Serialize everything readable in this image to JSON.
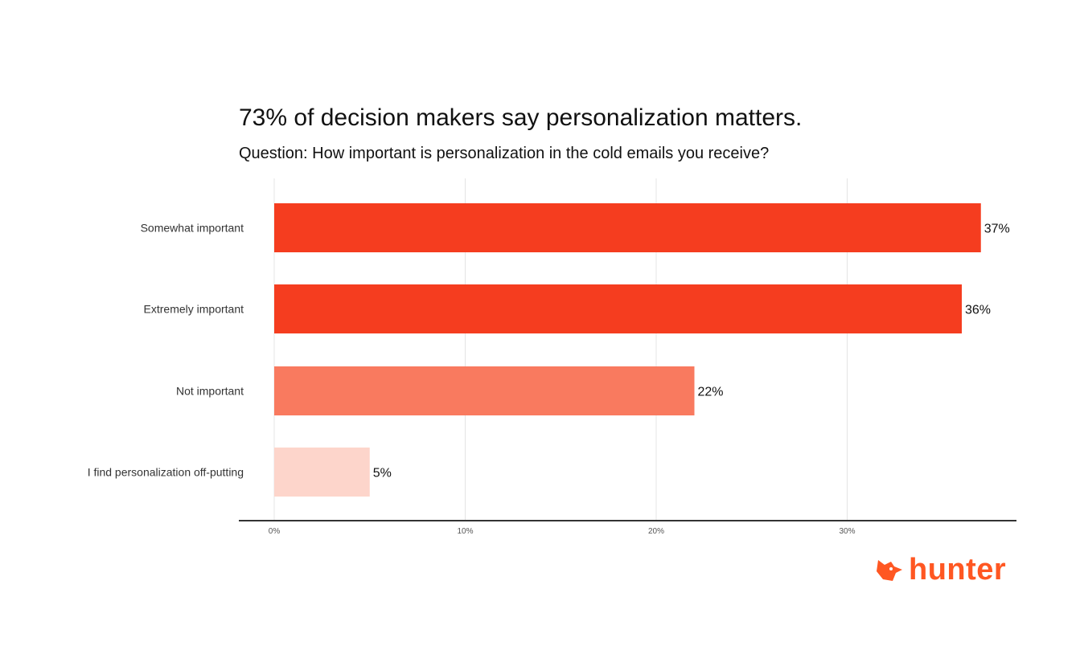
{
  "chart_data": {
    "type": "bar",
    "orientation": "horizontal",
    "title": "73% of decision makers say personalization matters.",
    "subtitle": "Question: How important is personalization in the cold emails you receive?",
    "categories": [
      "Somewhat important",
      "Extremely important",
      "Not important",
      "I find personalization off-putting"
    ],
    "values": [
      37,
      36,
      22,
      5
    ],
    "data_labels": [
      "37%",
      "36%",
      "22%",
      "5%"
    ],
    "colors": [
      "#F53D1F",
      "#F53D1F",
      "#F97A5F",
      "#FDD5CB"
    ],
    "xticks": [
      0,
      10,
      20,
      30
    ],
    "xtick_labels": [
      "0%",
      "10%",
      "20%",
      "30%"
    ],
    "xlim": [
      0,
      38
    ],
    "grid": true,
    "xlabel": "",
    "ylabel": ""
  },
  "logo": {
    "text": "hunter",
    "color": "#FF5722",
    "icon": "fox-head-icon"
  }
}
